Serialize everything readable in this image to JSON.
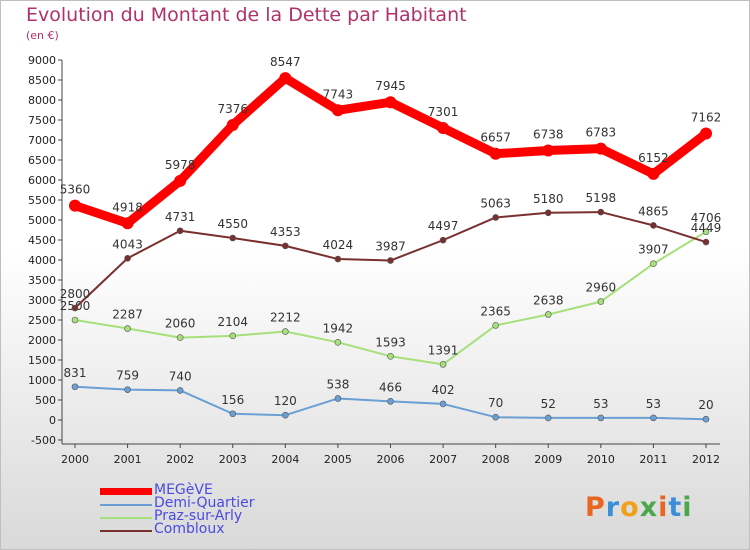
{
  "header": {
    "title": "Evolution du Montant de la Dette par Habitant",
    "subtitle": "(en €)"
  },
  "logo": {
    "text": "Proxiti",
    "colors": [
      "#e8661f",
      "#3b8fd9",
      "#f0a11a",
      "#4aa84a",
      "#e8661f",
      "#3b8fd9",
      "#4aa84a"
    ]
  },
  "chart_data": {
    "type": "line",
    "title": "Evolution du Montant de la Dette par Habitant",
    "subtitle": "(en €)",
    "x": [
      "2000",
      "2001",
      "2002",
      "2003",
      "2004",
      "2005",
      "2006",
      "2007",
      "2008",
      "2009",
      "2010",
      "2011",
      "2012"
    ],
    "ylim": [
      -500,
      9000
    ],
    "yticks": [
      -500,
      0,
      500,
      1000,
      1500,
      2000,
      2500,
      3000,
      3500,
      4000,
      4500,
      5000,
      5500,
      6000,
      6500,
      7000,
      7500,
      8000,
      8500,
      9000
    ],
    "grid": false,
    "legend_position": "bottom-left",
    "series": [
      {
        "name": "MEGèVE",
        "color": "#ff0000",
        "values": [
          5360,
          4918,
          5978,
          7376,
          8547,
          7743,
          7945,
          7301,
          6657,
          6738,
          6783,
          6152,
          7162
        ]
      },
      {
        "name": "Demi-Quartier",
        "color": "#6a9fd4",
        "values": [
          831,
          759,
          740,
          156,
          120,
          538,
          466,
          402,
          70,
          52,
          53,
          53,
          20
        ]
      },
      {
        "name": "Praz-sur-Arly",
        "color": "#a6e07a",
        "values": [
          2500,
          2287,
          2060,
          2104,
          2212,
          1942,
          1593,
          1391,
          2365,
          2638,
          2960,
          3907,
          4706
        ]
      },
      {
        "name": "Combloux",
        "color": "#7a2f2f",
        "values": [
          2800,
          4043,
          4731,
          4550,
          4353,
          4024,
          3987,
          4497,
          5063,
          5180,
          5198,
          4865,
          4449
        ]
      }
    ]
  }
}
